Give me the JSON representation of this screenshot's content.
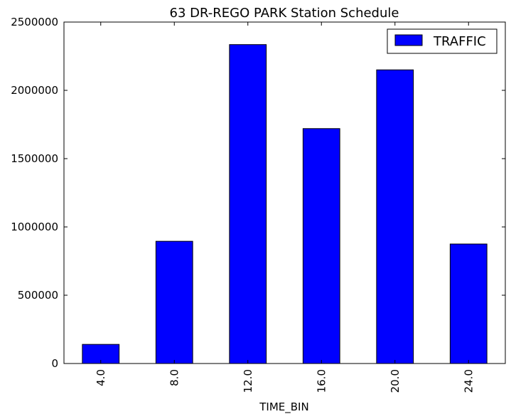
{
  "chart_data": {
    "type": "bar",
    "title": "63 DR-REGO PARK Station Schedule",
    "xlabel": "TIME_BIN",
    "ylabel": "",
    "categories": [
      "4.0",
      "8.0",
      "12.0",
      "16.0",
      "20.0",
      "24.0"
    ],
    "series": [
      {
        "name": "TRAFFIC",
        "color": "#0000ff",
        "values": [
          140000,
          895000,
          2335000,
          1720000,
          2150000,
          875000
        ]
      }
    ],
    "ylim": [
      0,
      2500000
    ],
    "yticks": [
      "0",
      "500000",
      "1000000",
      "1500000",
      "2000000",
      "2500000"
    ],
    "grid": false,
    "legend_position": "top-right"
  }
}
